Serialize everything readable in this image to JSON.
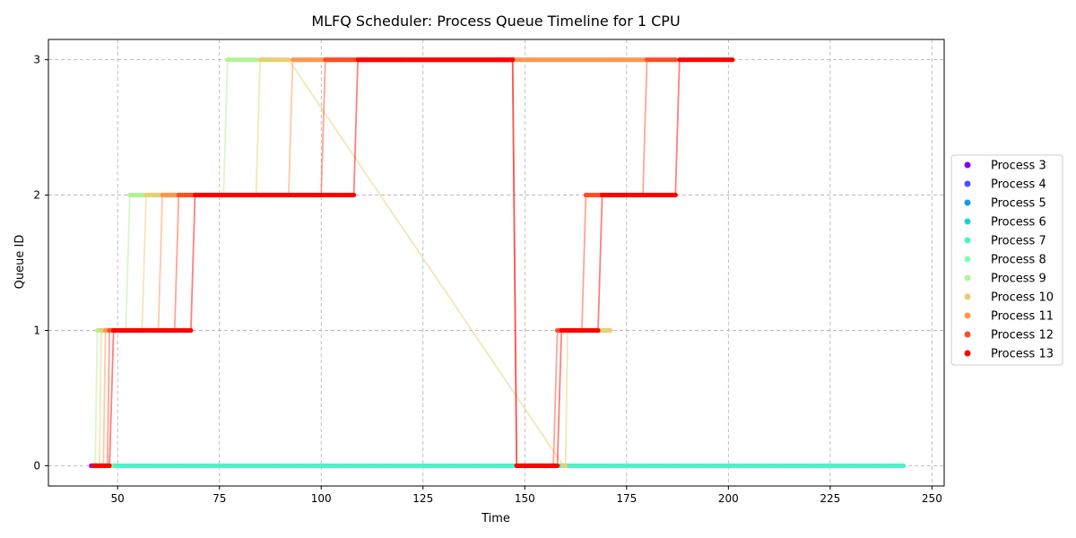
{
  "chart_data": {
    "type": "scatter",
    "title": "MLFQ Scheduler: Process Queue Timeline for 1 CPU",
    "xlabel": "Time",
    "ylabel": "Queue ID",
    "xlim": [
      33,
      253
    ],
    "ylim": [
      -0.15,
      3.15
    ],
    "x_ticks": [
      50,
      75,
      100,
      125,
      150,
      175,
      200,
      225,
      250
    ],
    "y_ticks": [
      0,
      1,
      2,
      3
    ],
    "grid": true,
    "legend_position": "center-right",
    "series": [
      {
        "name": "Process 3",
        "color": "#8000ff",
        "segments": [
          {
            "queue": 0,
            "start": 43.5,
            "end": 44.5
          }
        ]
      },
      {
        "name": "Process 4",
        "color": "#4c50f8",
        "segments": [
          {
            "queue": 0,
            "start": 44.3,
            "end": 45.2
          }
        ]
      },
      {
        "name": "Process 5",
        "color": "#1996f3",
        "segments": [
          {
            "queue": 0,
            "start": 45.0,
            "end": 46.0
          }
        ]
      },
      {
        "name": "Process 6",
        "color": "#1cd0dd",
        "segments": [
          {
            "queue": 0,
            "start": 46.0,
            "end": 47.0
          }
        ]
      },
      {
        "name": "Process 7",
        "color": "#4df2c7",
        "segments": [
          {
            "queue": 0,
            "start": 49,
            "end": 243
          }
        ]
      },
      {
        "name": "Process 8",
        "color": "#80ffb4",
        "segments": [
          {
            "queue": 0,
            "start": 47.5,
            "end": 48.5
          }
        ]
      },
      {
        "name": "Process 9",
        "color": "#b2f296",
        "segments": [
          {
            "queue": 0,
            "start": 44,
            "end": 44.6
          },
          {
            "queue": 1,
            "start": 45,
            "end": 52
          },
          {
            "queue": 2,
            "start": 53,
            "end": 76
          },
          {
            "queue": 3,
            "start": 77,
            "end": 84
          }
        ]
      },
      {
        "name": "Process 10",
        "color": "#e5d073",
        "segments": [
          {
            "queue": 0,
            "start": 45,
            "end": 45.6
          },
          {
            "queue": 1,
            "start": 46,
            "end": 56
          },
          {
            "queue": 2,
            "start": 57,
            "end": 84
          },
          {
            "queue": 3,
            "start": 85,
            "end": 92
          },
          {
            "queue": 0,
            "start": 159.5,
            "end": 160
          },
          {
            "queue": 1,
            "start": 160.5,
            "end": 171
          }
        ]
      },
      {
        "name": "Process 11",
        "color": "#ff9650",
        "segments": [
          {
            "queue": 0,
            "start": 46,
            "end": 46.6
          },
          {
            "queue": 1,
            "start": 47,
            "end": 60
          },
          {
            "queue": 2,
            "start": 61,
            "end": 92
          },
          {
            "queue": 3,
            "start": 93,
            "end": 180
          }
        ]
      },
      {
        "name": "Process 12",
        "color": "#ff4d26",
        "segments": [
          {
            "queue": 0,
            "start": 47,
            "end": 47.6
          },
          {
            "queue": 1,
            "start": 48,
            "end": 64
          },
          {
            "queue": 2,
            "start": 65,
            "end": 100
          },
          {
            "queue": 3,
            "start": 101,
            "end": 147
          },
          {
            "queue": 0,
            "start": 148,
            "end": 157
          },
          {
            "queue": 1,
            "start": 158,
            "end": 164
          },
          {
            "queue": 2,
            "start": 165,
            "end": 179
          },
          {
            "queue": 3,
            "start": 180,
            "end": 187
          }
        ]
      },
      {
        "name": "Process 13",
        "color": "#ff0000",
        "segments": [
          {
            "queue": 0,
            "start": 44,
            "end": 48
          },
          {
            "queue": 1,
            "start": 49,
            "end": 68
          },
          {
            "queue": 2,
            "start": 69,
            "end": 108
          },
          {
            "queue": 3,
            "start": 109,
            "end": 147
          },
          {
            "queue": 0,
            "start": 148,
            "end": 158
          },
          {
            "queue": 1,
            "start": 159,
            "end": 168
          },
          {
            "queue": 2,
            "start": 169,
            "end": 187
          },
          {
            "queue": 3,
            "start": 188,
            "end": 201
          }
        ]
      }
    ]
  }
}
